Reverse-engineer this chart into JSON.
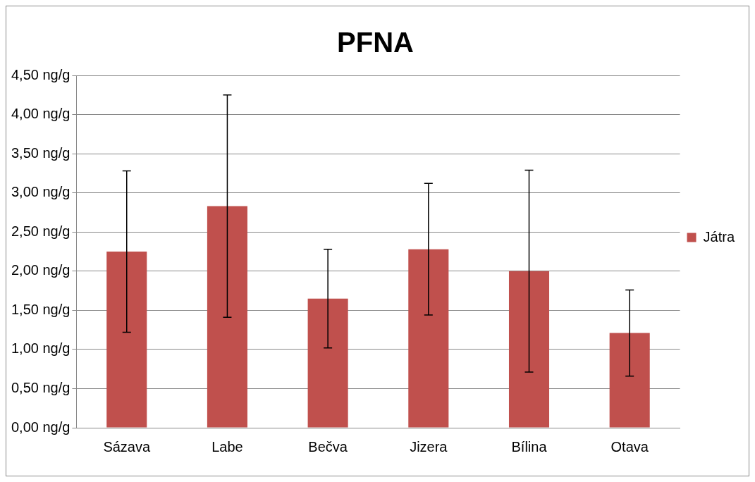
{
  "chart_data": {
    "type": "bar",
    "title": "PFNA",
    "categories": [
      "Sázava",
      "Labe",
      "Bečva",
      "Jizera",
      "Bílina",
      "Otava"
    ],
    "series": [
      {
        "name": "Játra",
        "color": "#c0504d",
        "values": [
          2.25,
          2.83,
          1.65,
          2.28,
          2.0,
          1.21
        ],
        "errors": [
          1.03,
          1.42,
          0.63,
          0.84,
          1.29,
          0.55
        ]
      }
    ],
    "ylim": [
      0,
      4.5
    ],
    "yticks": [
      {
        "value": 0,
        "label": "0,00 ng/g"
      },
      {
        "value": 0.5,
        "label": "0,50 ng/g"
      },
      {
        "value": 1,
        "label": "1,00 ng/g"
      },
      {
        "value": 1.5,
        "label": "1,50 ng/g"
      },
      {
        "value": 2,
        "label": "2,00 ng/g"
      },
      {
        "value": 2.5,
        "label": "2,50 ng/g"
      },
      {
        "value": 3,
        "label": "3,00 ng/g"
      },
      {
        "value": 3.5,
        "label": "3,50 ng/g"
      },
      {
        "value": 4,
        "label": "4,00 ng/g"
      },
      {
        "value": 4.5,
        "label": "4,50 ng/g"
      }
    ],
    "grid": "y",
    "legend": "right"
  }
}
